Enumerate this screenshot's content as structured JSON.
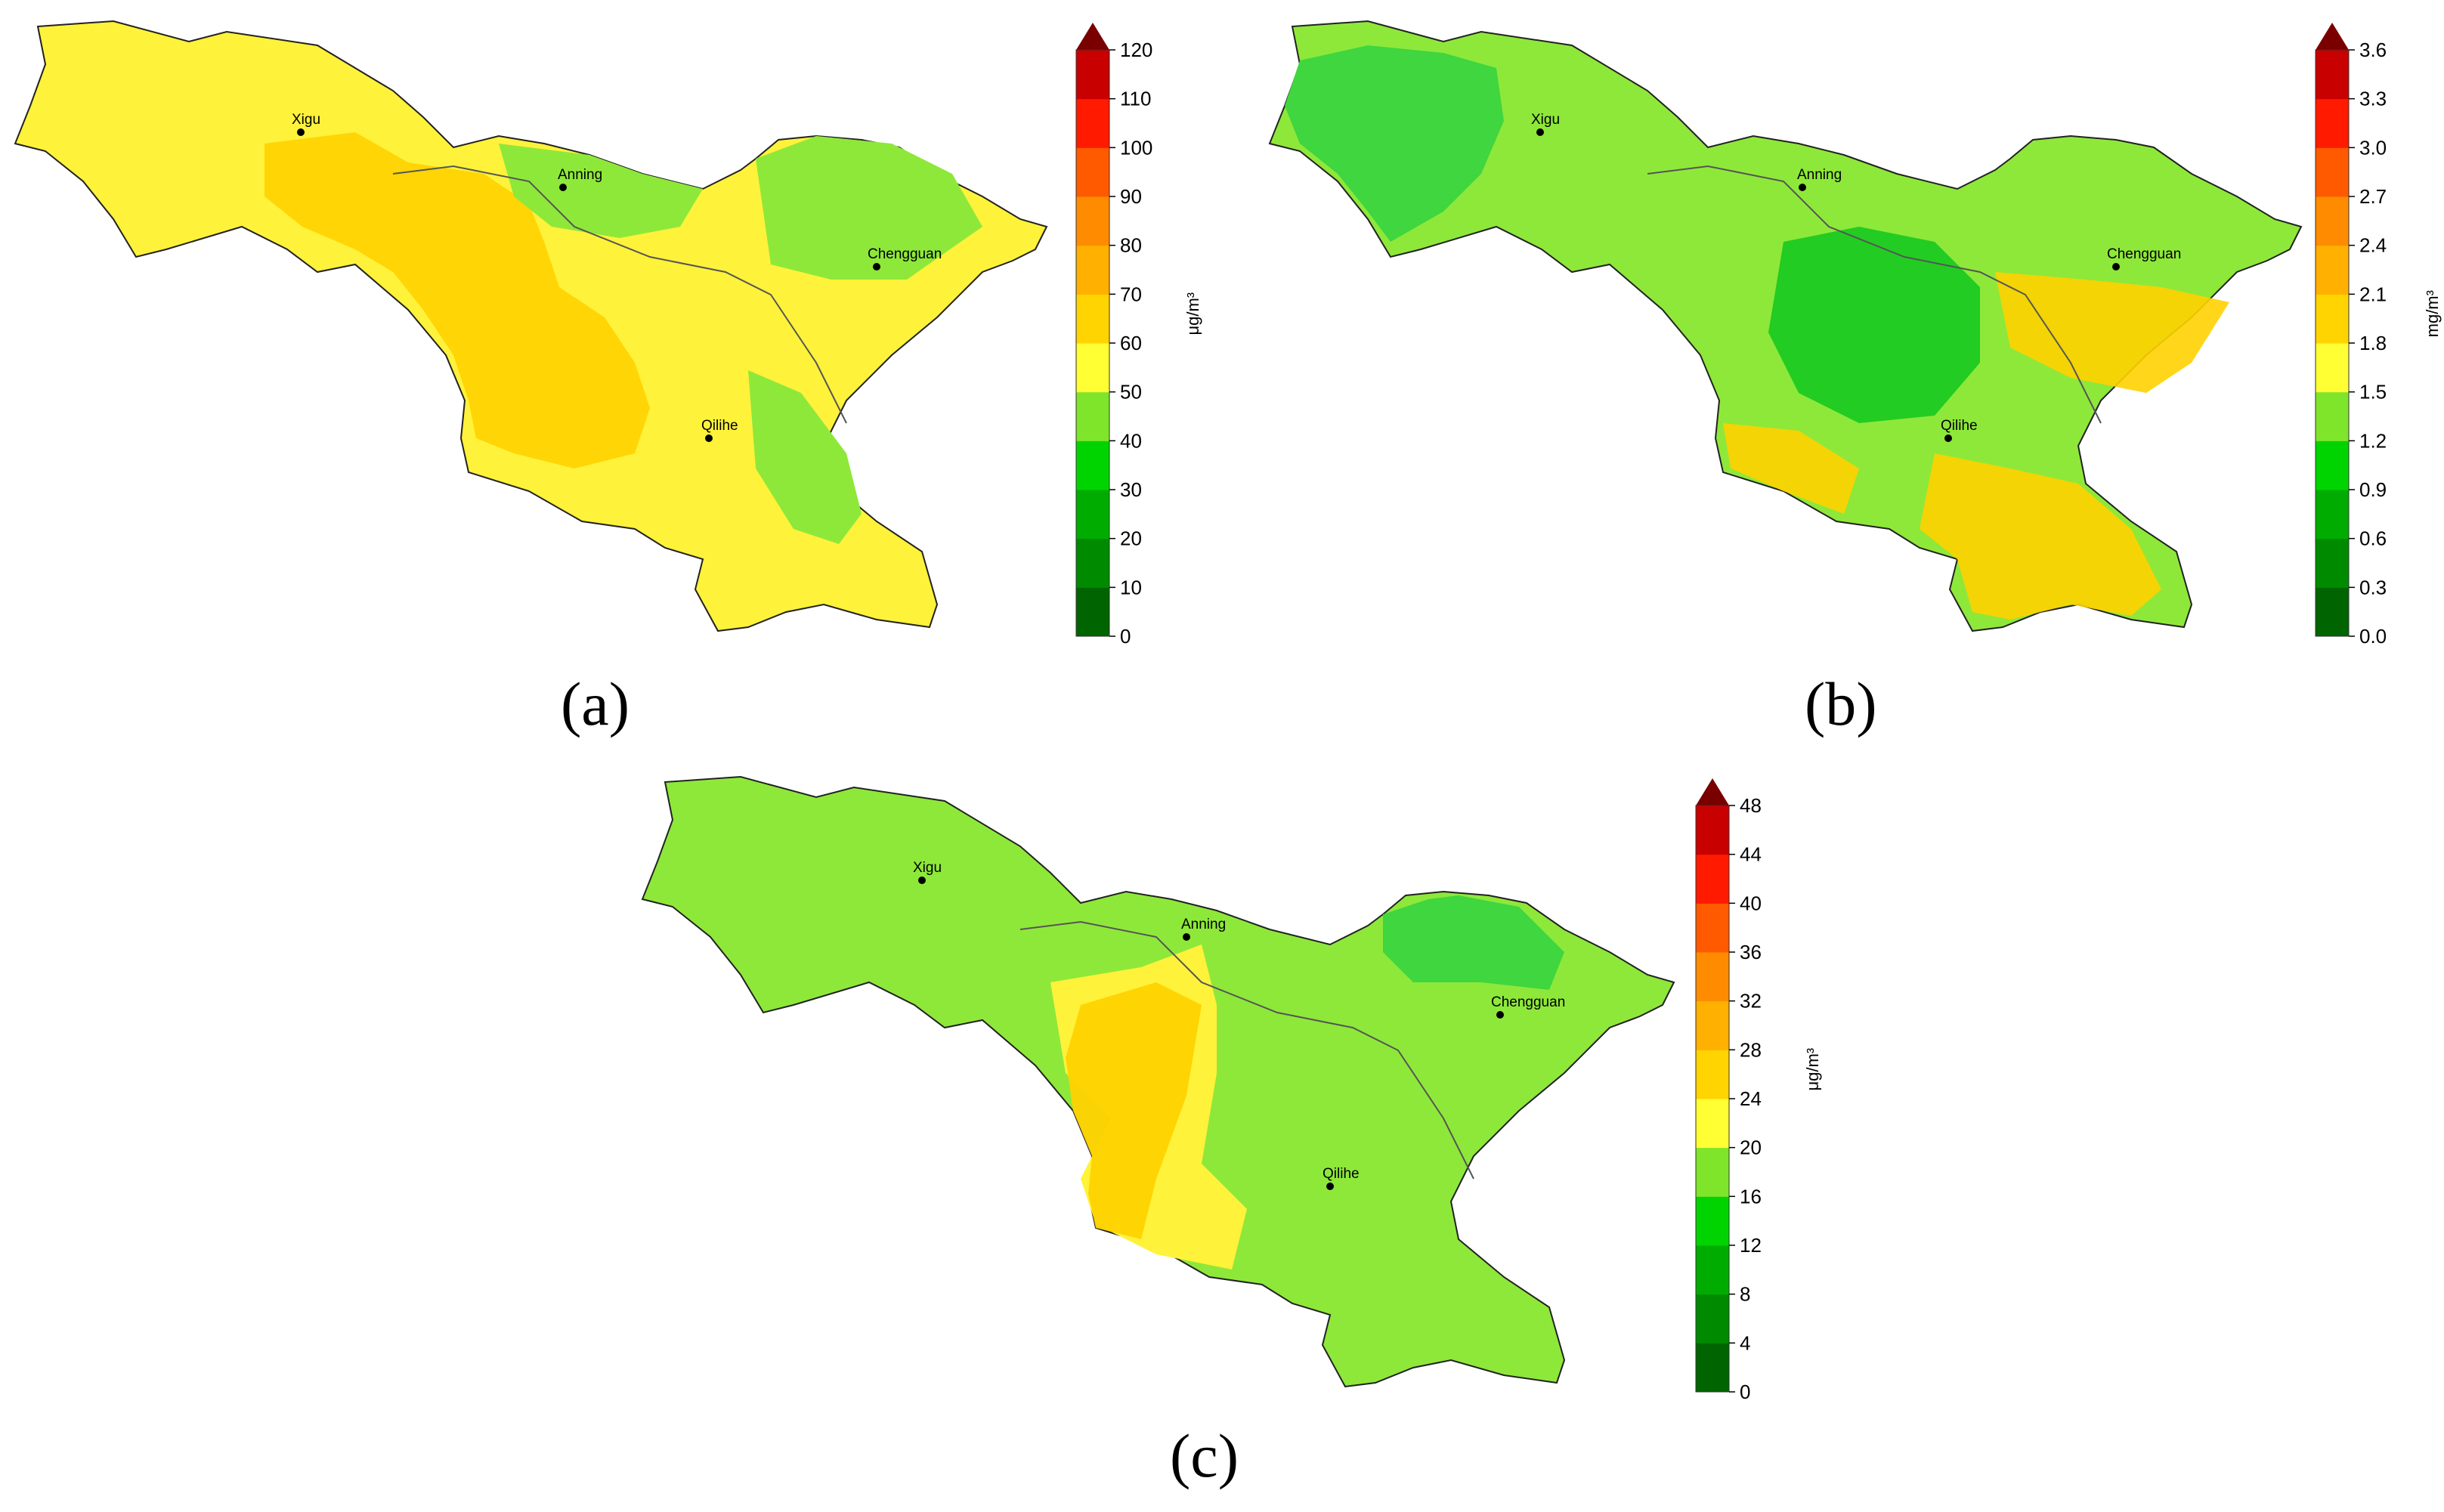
{
  "panels": [
    {
      "label": "(a)",
      "unit": "μg/m³",
      "ticks": [
        "0",
        "10",
        "20",
        "30",
        "40",
        "50",
        "60",
        "70",
        "80",
        "90",
        "100",
        "110",
        "120"
      ],
      "dominant_level": "50–60",
      "high_zone_level": "60–70",
      "low_zone_level": "40–50"
    },
    {
      "label": "(b)",
      "unit": "mg/m³",
      "ticks": [
        "0.0",
        "0.3",
        "0.6",
        "0.9",
        "1.2",
        "1.5",
        "1.8",
        "2.1",
        "2.4",
        "2.7",
        "3.0",
        "3.3",
        "3.6"
      ],
      "dominant_level": "1.2–1.5",
      "high_zone_level": "1.8–2.1",
      "low_zone_level": "0.9–1.2"
    },
    {
      "label": "(c)",
      "unit": "μg/m³",
      "ticks": [
        "0",
        "4",
        "8",
        "12",
        "16",
        "20",
        "24",
        "28",
        "32",
        "36",
        "40",
        "44",
        "48"
      ],
      "dominant_level": "16–20",
      "high_zone_level": "24–28",
      "low_zone_level": "12–16"
    }
  ],
  "cities": [
    "Xigu",
    "Anning",
    "Chengguan",
    "Qilihe"
  ],
  "colorbar_colors": [
    "#006400",
    "#008a00",
    "#00ac00",
    "#00d400",
    "#7fe52b",
    "#ffff33",
    "#ffd400",
    "#ffb000",
    "#ff8c00",
    "#ff5a00",
    "#ff1a00",
    "#c80000"
  ],
  "colorbar_arrow_color": "#7a0000"
}
